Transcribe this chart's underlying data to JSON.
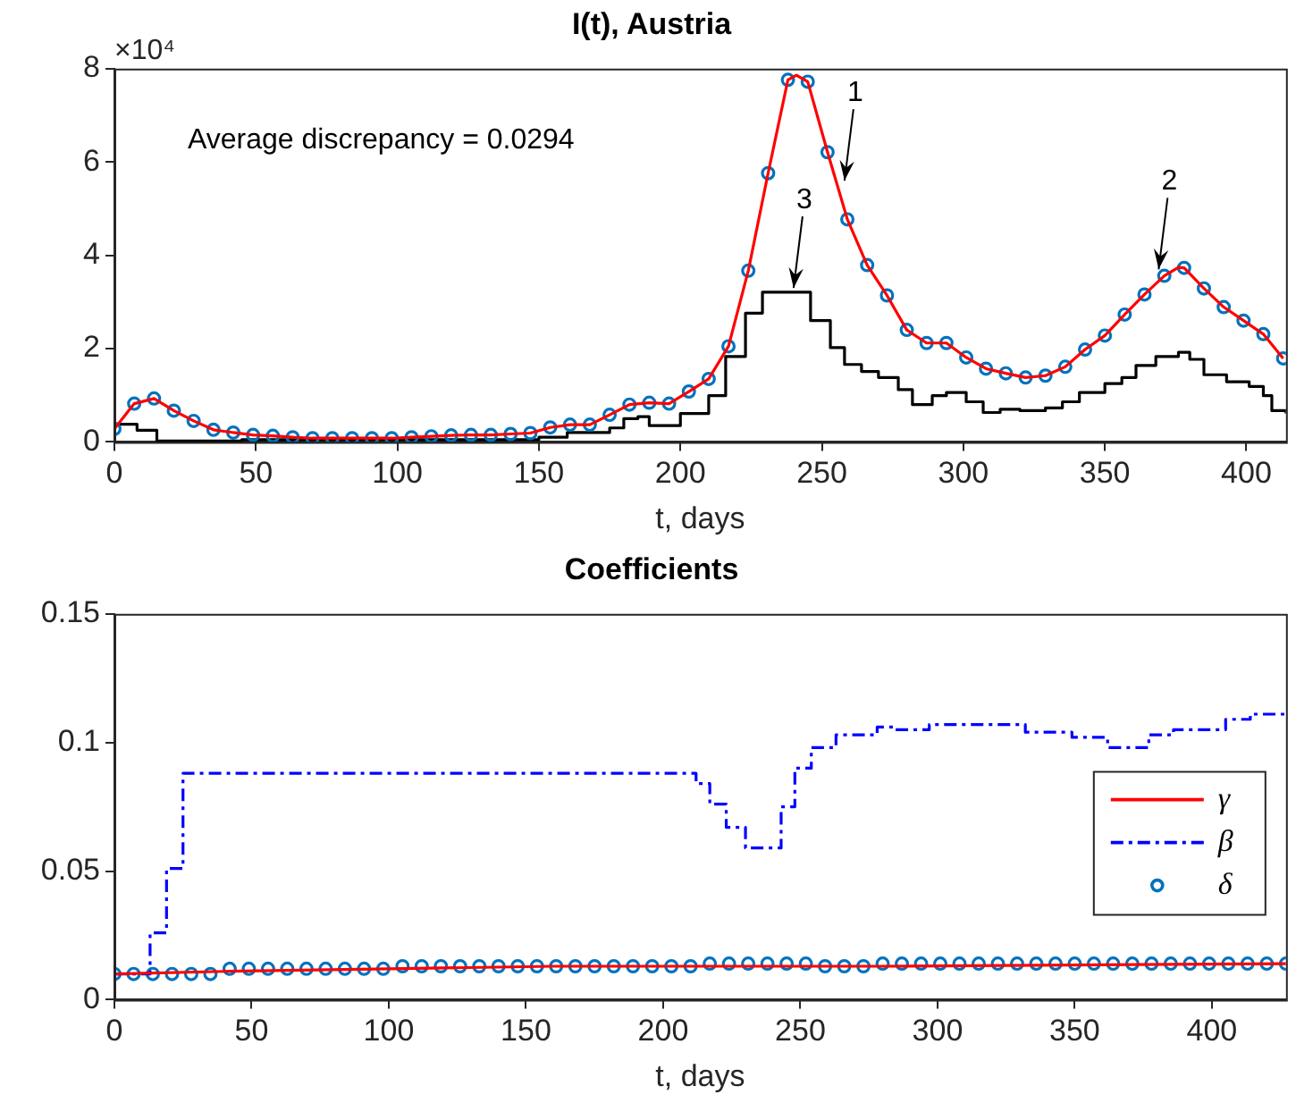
{
  "chart_data": [
    {
      "type": "line",
      "title": "I(t), Austria",
      "xlabel": "t, days",
      "xlim": [
        0,
        414
      ],
      "xticks": [
        0,
        50,
        100,
        150,
        200,
        250,
        300,
        350,
        400
      ],
      "ylim": [
        0,
        8
      ],
      "yticks": [
        0,
        2,
        4,
        6,
        8
      ],
      "grid": false,
      "legend": false,
      "annotations": [
        "×10⁴",
        "Average discrepancy = 0.0294",
        {
          "text": "1",
          "x": 258,
          "y": 5.6
        },
        {
          "text": "2",
          "x": 369,
          "y": 3.7
        },
        {
          "text": "3",
          "x": 240,
          "y": 3.3
        }
      ],
      "series": [
        {
          "type": "line",
          "color": "#ff0000",
          "marker": "none",
          "line_style": "solid",
          "x": [
            0,
            7,
            14,
            21,
            28,
            35,
            42,
            49,
            56,
            63,
            70,
            77,
            84,
            91,
            98,
            105,
            112,
            119,
            126,
            133,
            140,
            147,
            154,
            161,
            168,
            175,
            182,
            189,
            196,
            203,
            210,
            217,
            224,
            231,
            238,
            241,
            245,
            252,
            259,
            266,
            273,
            280,
            287,
            294,
            301,
            308,
            315,
            322,
            329,
            336,
            343,
            350,
            357,
            364,
            371,
            376,
            378,
            385,
            392,
            399,
            406,
            413
          ],
          "values": [
            0.28,
            0.82,
            0.93,
            0.67,
            0.45,
            0.26,
            0.2,
            0.15,
            0.13,
            0.1,
            0.08,
            0.08,
            0.08,
            0.08,
            0.08,
            0.1,
            0.12,
            0.14,
            0.15,
            0.15,
            0.17,
            0.19,
            0.31,
            0.37,
            0.37,
            0.58,
            0.8,
            0.84,
            0.82,
            1.08,
            1.35,
            2.05,
            3.67,
            5.76,
            7.76,
            7.86,
            7.72,
            6.21,
            4.77,
            3.79,
            3.14,
            2.4,
            2.12,
            2.12,
            1.81,
            1.57,
            1.47,
            1.38,
            1.42,
            1.61,
            1.98,
            2.28,
            2.73,
            3.16,
            3.56,
            3.74,
            3.73,
            3.29,
            2.89,
            2.6,
            2.31,
            1.79
          ]
        },
        {
          "type": "scatter",
          "color": "#0072bd",
          "marker": "circle",
          "x": [
            0,
            7,
            14,
            21,
            28,
            35,
            42,
            49,
            56,
            63,
            70,
            77,
            84,
            91,
            98,
            105,
            112,
            119,
            126,
            133,
            140,
            147,
            154,
            161,
            168,
            175,
            182,
            189,
            196,
            203,
            210,
            217,
            224,
            231,
            238,
            245,
            252,
            259,
            266,
            273,
            280,
            287,
            294,
            301,
            308,
            315,
            322,
            329,
            336,
            343,
            350,
            357,
            364,
            371,
            378,
            385,
            392,
            399,
            406,
            413
          ],
          "values": [
            0.28,
            0.82,
            0.93,
            0.67,
            0.45,
            0.26,
            0.2,
            0.15,
            0.13,
            0.1,
            0.08,
            0.08,
            0.08,
            0.08,
            0.08,
            0.1,
            0.12,
            0.14,
            0.15,
            0.15,
            0.17,
            0.19,
            0.31,
            0.37,
            0.37,
            0.58,
            0.8,
            0.84,
            0.82,
            1.08,
            1.35,
            2.05,
            3.67,
            5.76,
            7.76,
            7.72,
            6.21,
            4.77,
            3.79,
            3.14,
            2.4,
            2.12,
            2.12,
            1.81,
            1.57,
            1.47,
            1.38,
            1.42,
            1.61,
            1.98,
            2.28,
            2.73,
            3.16,
            3.56,
            3.73,
            3.29,
            2.89,
            2.6,
            2.31,
            1.79
          ]
        },
        {
          "type": "step",
          "color": "#000000",
          "marker": "none",
          "line_style": "solid",
          "x": [
            0,
            8,
            15,
            45,
            150,
            160,
            175,
            180,
            185,
            189,
            200,
            210,
            216,
            223,
            229,
            240,
            246,
            253,
            258,
            264,
            270,
            277,
            282,
            289,
            294,
            301,
            307,
            313,
            320,
            329,
            335,
            341,
            350,
            356,
            361,
            368,
            376,
            380,
            385,
            393,
            401,
            406,
            409,
            414
          ],
          "values": [
            0.38,
            0.25,
            0.02,
            0.05,
            0.1,
            0.2,
            0.3,
            0.5,
            0.54,
            0.35,
            0.61,
            0.99,
            1.83,
            2.76,
            3.21,
            3.21,
            2.6,
            2.02,
            1.66,
            1.51,
            1.38,
            1.12,
            0.8,
            0.99,
            1.06,
            0.86,
            0.63,
            0.7,
            0.67,
            0.73,
            0.86,
            1.06,
            1.25,
            1.38,
            1.64,
            1.83,
            1.92,
            1.77,
            1.44,
            1.29,
            1.19,
            0.99,
            0.67,
            0.61
          ]
        }
      ]
    },
    {
      "type": "line",
      "title": "Coefficients",
      "xlabel": "t, days",
      "xlim": [
        0,
        427
      ],
      "xticks": [
        0,
        50,
        100,
        150,
        200,
        250,
        300,
        350,
        400
      ],
      "ylim": [
        0,
        0.15
      ],
      "yticks": [
        0,
        0.05,
        0.1,
        0.15
      ],
      "grid": false,
      "legend": "right",
      "series": [
        {
          "name": "γ",
          "type": "line",
          "color": "#ff0000",
          "marker": "none",
          "line_style": "solid",
          "x": [
            0,
            40,
            100,
            160,
            260,
            280,
            427
          ],
          "values": [
            0.01,
            0.011,
            0.012,
            0.013,
            0.013,
            0.013,
            0.014
          ]
        },
        {
          "name": "β",
          "type": "step",
          "color": "#0000ff",
          "marker": "none",
          "line_style": "dashed",
          "x": [
            0,
            13,
            19,
            25,
            212,
            217,
            223,
            230,
            243,
            248,
            254,
            263,
            278,
            284,
            297,
            332,
            349,
            362,
            377,
            386,
            405,
            414,
            427
          ],
          "values": [
            0.01,
            0.026,
            0.051,
            0.088,
            0.084,
            0.076,
            0.067,
            0.059,
            0.075,
            0.09,
            0.098,
            0.103,
            0.106,
            0.105,
            0.107,
            0.104,
            0.102,
            0.098,
            0.103,
            0.105,
            0.109,
            0.111,
            0.111
          ]
        },
        {
          "name": "δ",
          "type": "scatter",
          "color": "#0072bd",
          "marker": "circle",
          "x": [
            0,
            7,
            14,
            21,
            28,
            35,
            42,
            49,
            56,
            63,
            70,
            77,
            84,
            91,
            98,
            105,
            112,
            119,
            126,
            133,
            140,
            147,
            154,
            161,
            168,
            175,
            182,
            189,
            196,
            203,
            210,
            217,
            224,
            231,
            238,
            245,
            252,
            259,
            266,
            273,
            280,
            287,
            294,
            301,
            308,
            315,
            322,
            329,
            336,
            343,
            350,
            357,
            364,
            371,
            378,
            385,
            392,
            399,
            406,
            413,
            420,
            427
          ],
          "values": [
            0.01,
            0.01,
            0.01,
            0.01,
            0.01,
            0.01,
            0.012,
            0.012,
            0.012,
            0.012,
            0.012,
            0.012,
            0.012,
            0.012,
            0.012,
            0.013,
            0.013,
            0.013,
            0.013,
            0.013,
            0.013,
            0.013,
            0.013,
            0.013,
            0.013,
            0.013,
            0.013,
            0.013,
            0.013,
            0.013,
            0.013,
            0.014,
            0.014,
            0.014,
            0.014,
            0.014,
            0.014,
            0.013,
            0.013,
            0.013,
            0.014,
            0.014,
            0.014,
            0.014,
            0.014,
            0.014,
            0.014,
            0.014,
            0.014,
            0.014,
            0.014,
            0.014,
            0.014,
            0.014,
            0.014,
            0.014,
            0.014,
            0.014,
            0.014,
            0.014,
            0.014,
            0.014
          ]
        }
      ]
    }
  ]
}
